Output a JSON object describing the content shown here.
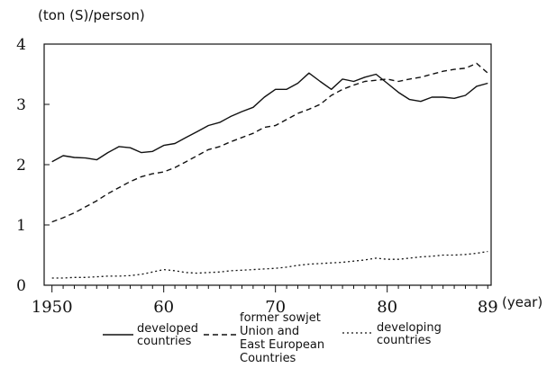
{
  "chart_data": {
    "type": "line",
    "ylabel": "(ton (S)/person)",
    "xlabel": "(year)",
    "x_ticks": [
      {
        "value": 1950,
        "label": "1950"
      },
      {
        "value": 1960,
        "label": "60"
      },
      {
        "value": 1970,
        "label": "70"
      },
      {
        "value": 1980,
        "label": "80"
      },
      {
        "value": 1989,
        "label": "89"
      }
    ],
    "y_ticks": [
      {
        "value": 0,
        "label": "0"
      },
      {
        "value": 1,
        "label": "1"
      },
      {
        "value": 2,
        "label": "2"
      },
      {
        "value": 3,
        "label": "3"
      },
      {
        "value": 4,
        "label": "4"
      }
    ],
    "xlim": [
      1949.3,
      1989.3
    ],
    "ylim": [
      0,
      4
    ],
    "grid": false,
    "legend_position": "bottom",
    "series": [
      {
        "name": "developed countries",
        "style": "solid",
        "x": [
          1950,
          1951,
          1952,
          1953,
          1954,
          1955,
          1956,
          1957,
          1958,
          1959,
          1960,
          1961,
          1962,
          1963,
          1964,
          1965,
          1966,
          1967,
          1968,
          1969,
          1970,
          1971,
          1972,
          1973,
          1974,
          1975,
          1976,
          1977,
          1978,
          1979,
          1980,
          1981,
          1982,
          1983,
          1984,
          1985,
          1986,
          1987,
          1988,
          1989
        ],
        "values": [
          2.05,
          2.15,
          2.12,
          2.11,
          2.08,
          2.2,
          2.3,
          2.28,
          2.2,
          2.22,
          2.32,
          2.35,
          2.45,
          2.55,
          2.65,
          2.7,
          2.8,
          2.88,
          2.95,
          3.12,
          3.25,
          3.25,
          3.35,
          3.52,
          3.38,
          3.25,
          3.42,
          3.38,
          3.45,
          3.5,
          3.35,
          3.2,
          3.08,
          3.05,
          3.12,
          3.12,
          3.1,
          3.15,
          3.3,
          3.35
        ]
      },
      {
        "name": "former sowjet Union and East European Countries",
        "style": "dashed",
        "x": [
          1950,
          1951,
          1952,
          1953,
          1954,
          1955,
          1956,
          1957,
          1958,
          1959,
          1960,
          1961,
          1962,
          1963,
          1964,
          1965,
          1966,
          1967,
          1968,
          1969,
          1970,
          1971,
          1972,
          1973,
          1974,
          1975,
          1976,
          1977,
          1978,
          1979,
          1980,
          1981,
          1982,
          1983,
          1984,
          1985,
          1986,
          1987,
          1988,
          1989
        ],
        "values": [
          1.05,
          1.12,
          1.2,
          1.3,
          1.4,
          1.52,
          1.62,
          1.72,
          1.8,
          1.85,
          1.88,
          1.95,
          2.05,
          2.15,
          2.25,
          2.3,
          2.38,
          2.45,
          2.52,
          2.62,
          2.65,
          2.75,
          2.85,
          2.92,
          3.0,
          3.15,
          3.25,
          3.32,
          3.38,
          3.4,
          3.42,
          3.38,
          3.42,
          3.45,
          3.5,
          3.55,
          3.58,
          3.6,
          3.68,
          3.52
        ]
      },
      {
        "name": "developing countries",
        "style": "dotted",
        "x": [
          1950,
          1951,
          1952,
          1953,
          1954,
          1955,
          1956,
          1957,
          1958,
          1959,
          1960,
          1961,
          1962,
          1963,
          1964,
          1965,
          1966,
          1967,
          1968,
          1969,
          1970,
          1971,
          1972,
          1973,
          1974,
          1975,
          1976,
          1977,
          1978,
          1979,
          1980,
          1981,
          1982,
          1983,
          1984,
          1985,
          1986,
          1987,
          1988,
          1989
        ],
        "values": [
          0.12,
          0.12,
          0.13,
          0.13,
          0.14,
          0.15,
          0.15,
          0.16,
          0.18,
          0.22,
          0.26,
          0.24,
          0.21,
          0.2,
          0.21,
          0.22,
          0.24,
          0.25,
          0.26,
          0.27,
          0.28,
          0.3,
          0.33,
          0.35,
          0.36,
          0.37,
          0.38,
          0.4,
          0.42,
          0.45,
          0.43,
          0.43,
          0.45,
          0.47,
          0.48,
          0.5,
          0.5,
          0.51,
          0.53,
          0.56
        ]
      }
    ]
  },
  "legend": {
    "developed": [
      "developed",
      "countries"
    ],
    "soviet": [
      "former sowjet",
      "Union and",
      "East European",
      "Countries"
    ],
    "developing": [
      "developing",
      "countries"
    ]
  }
}
